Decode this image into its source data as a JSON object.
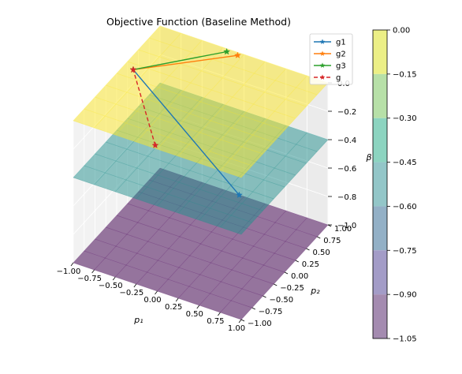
{
  "chart_data": {
    "type": "surface3d",
    "title": "Objective Function (Baseline Method)",
    "xlabel": "p₁",
    "ylabel": "p₂",
    "zlabel": "β",
    "xlim": [
      -1.0,
      1.0
    ],
    "ylim": [
      -1.0,
      1.0
    ],
    "zlim": [
      -1.0,
      0.0
    ],
    "x_ticks": [
      "−1.00",
      "−0.75",
      "−0.50",
      "−0.25",
      "0.00",
      "0.25",
      "0.50",
      "0.75",
      "1.00"
    ],
    "y_ticks": [
      "−1.00",
      "−0.75",
      "−0.50",
      "−0.25",
      "0.00",
      "0.25",
      "0.50",
      "0.75",
      "1.00"
    ],
    "z_ticks": [
      "−1.0",
      "−0.8",
      "−0.6",
      "−0.4",
      "−0.2",
      "0.0"
    ],
    "grid": true,
    "surfaces": [
      {
        "z": -1.0,
        "color": "#440154"
      },
      {
        "z": -0.4,
        "color": "#21908d"
      },
      {
        "z": 0.0,
        "color": "#fde725"
      }
    ],
    "series": [
      {
        "name": "g1",
        "color": "#1f77b4",
        "style": "solid",
        "marker": "star",
        "points": [
          [
            0.95,
            -0.95,
            -0.15
          ],
          [
            -0.88,
            0.15,
            0.0
          ]
        ]
      },
      {
        "name": "g2",
        "color": "#ff7f0e",
        "style": "solid",
        "marker": "star",
        "points": [
          [
            -0.05,
            0.95,
            0.0
          ],
          [
            -0.88,
            0.15,
            0.0
          ]
        ]
      },
      {
        "name": "g3",
        "color": "#2ca02c",
        "style": "solid",
        "marker": "star",
        "points": [
          [
            -0.18,
            0.95,
            0.0
          ],
          [
            -0.88,
            0.15,
            0.0
          ]
        ]
      },
      {
        "name": "g",
        "color": "#d62728",
        "style": "dashed",
        "marker": "star",
        "points": [
          [
            -0.05,
            -0.95,
            0.0
          ],
          [
            -0.88,
            0.15,
            0.0
          ]
        ]
      }
    ],
    "legend_position": "top-right",
    "colorbar": {
      "ticks": [
        "0.00",
        "−0.15",
        "−0.30",
        "−0.45",
        "−0.60",
        "−0.75",
        "−0.90",
        "−1.05"
      ],
      "bands": [
        "#ecef86",
        "#b7e0a8",
        "#8cd4c0",
        "#93c6c8",
        "#93b0c6",
        "#a39cc7",
        "#a48bb0"
      ]
    }
  }
}
